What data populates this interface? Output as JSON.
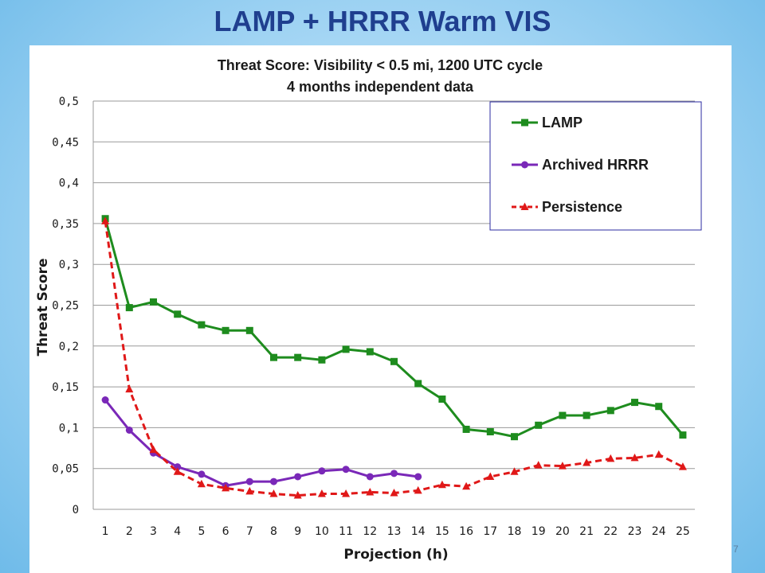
{
  "slide": {
    "title": "LAMP + HRRR Warm VIS",
    "page_number": "7"
  },
  "chart_data": {
    "type": "line",
    "title": "Threat Score: Visibility < 0.5 mi, 1200 UTC cycle",
    "subtitle": "4 months independent data",
    "xlabel": "Projection (h)",
    "ylabel": "Threat Score",
    "ylim": [
      0,
      0.5
    ],
    "yticks": [
      "0",
      "0,05",
      "0,1",
      "0,15",
      "0,2",
      "0,25",
      "0,3",
      "0,35",
      "0,4",
      "0,45",
      "0,5"
    ],
    "ytick_values": [
      0,
      0.05,
      0.1,
      0.15,
      0.2,
      0.25,
      0.3,
      0.35,
      0.4,
      0.45,
      0.5
    ],
    "categories": [
      "1",
      "2",
      "3",
      "4",
      "5",
      "6",
      "7",
      "8",
      "9",
      "10",
      "11",
      "12",
      "13",
      "14",
      "15",
      "16",
      "17",
      "18",
      "19",
      "20",
      "21",
      "22",
      "23",
      "24",
      "25"
    ],
    "grid": "horizontal",
    "legend_position": "top-right",
    "series": [
      {
        "name": "LAMP",
        "color": "#1e8c1e",
        "marker": "square",
        "dash": "solid",
        "values": [
          0.356,
          0.247,
          0.254,
          0.239,
          0.226,
          0.219,
          0.219,
          0.186,
          0.186,
          0.183,
          0.196,
          0.193,
          0.181,
          0.154,
          0.135,
          0.098,
          0.095,
          0.089,
          0.103,
          0.115,
          0.115,
          0.121,
          0.131,
          0.126,
          0.091
        ]
      },
      {
        "name": "Archived HRRR",
        "color": "#7a28b8",
        "marker": "circle",
        "dash": "solid",
        "values": [
          0.134,
          0.097,
          0.069,
          0.052,
          0.043,
          0.029,
          0.034,
          0.034,
          0.04,
          0.047,
          0.049,
          0.04,
          0.044,
          0.04,
          null,
          null,
          null,
          null,
          null,
          null,
          null,
          null,
          null,
          null,
          null
        ]
      },
      {
        "name": "Persistence",
        "color": "#e01818",
        "marker": "triangle",
        "dash": "dashed",
        "values": [
          0.353,
          0.147,
          0.073,
          0.046,
          0.031,
          0.026,
          0.022,
          0.019,
          0.017,
          0.019,
          0.019,
          0.021,
          0.02,
          0.023,
          0.03,
          0.028,
          0.04,
          0.046,
          0.054,
          0.053,
          0.057,
          0.062,
          0.063,
          0.067,
          0.052
        ]
      }
    ]
  }
}
